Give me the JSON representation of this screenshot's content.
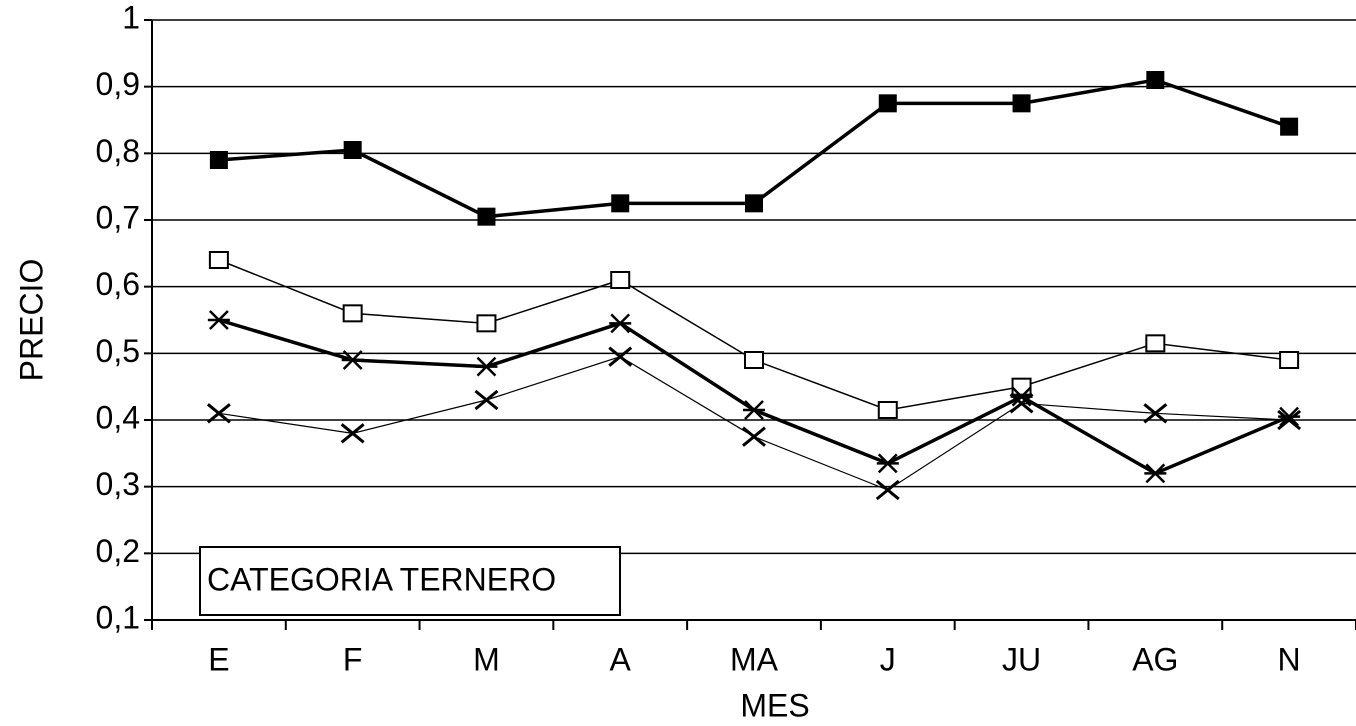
{
  "chart_data": {
    "type": "line",
    "xlabel": "MES",
    "ylabel": "PRECIO",
    "annotation": "CATEGORIA TERNERO",
    "categories": [
      "E",
      "F",
      "M",
      "A",
      "MA",
      "J",
      "JU",
      "AG",
      "N"
    ],
    "series": [
      {
        "color": "#000000",
        "marker": "square-filled",
        "linewidth": 3.5,
        "values": [
          0.79,
          0.805,
          0.705,
          0.725,
          0.725,
          0.875,
          0.875,
          0.91,
          0.84
        ]
      },
      {
        "color": "#000000",
        "marker": "square-open",
        "linewidth": 1.5,
        "values": [
          0.64,
          0.56,
          0.545,
          0.61,
          0.49,
          0.415,
          0.45,
          0.515,
          0.49
        ]
      },
      {
        "color": "#000000",
        "marker": "star",
        "linewidth": 3.5,
        "values": [
          0.55,
          0.49,
          0.48,
          0.545,
          0.415,
          0.335,
          0.435,
          0.32,
          0.405
        ]
      },
      {
        "color": "#000000",
        "marker": "x",
        "linewidth": 1.2,
        "values": [
          0.41,
          0.38,
          0.43,
          0.495,
          0.375,
          0.295,
          0.425,
          0.41,
          0.4
        ]
      }
    ],
    "ylim": [
      0.1,
      1
    ],
    "yticks": [
      {
        "value": 0.1,
        "label": "0,1"
      },
      {
        "value": 0.2,
        "label": "0,2"
      },
      {
        "value": 0.3,
        "label": "0,3"
      },
      {
        "value": 0.4,
        "label": "0,4"
      },
      {
        "value": 0.5,
        "label": "0,5"
      },
      {
        "value": 0.6,
        "label": "0,6"
      },
      {
        "value": 0.7,
        "label": "0,7"
      },
      {
        "value": 0.8,
        "label": "0,8"
      },
      {
        "value": 0.9,
        "label": "0,9"
      },
      1
    ],
    "grid": true
  }
}
